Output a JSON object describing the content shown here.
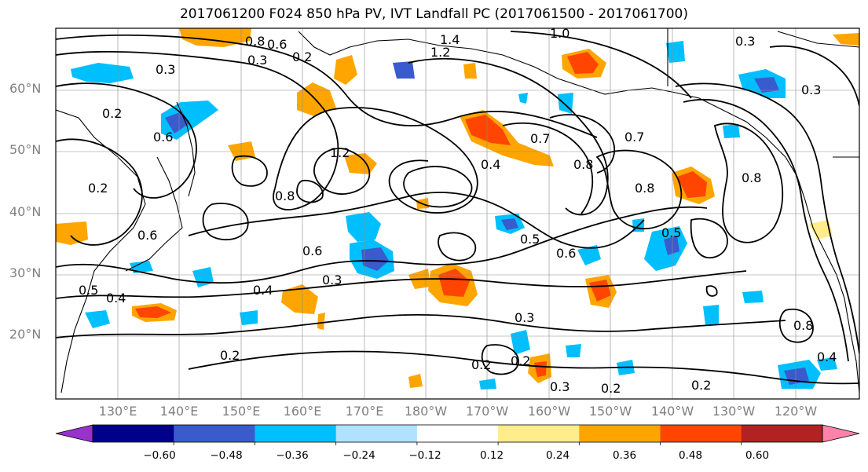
{
  "title": "2017061200 F024 850 hPa PV, IVT Landfall PC (2017061500 - 2017061700)",
  "lat_labels": [
    "60°N",
    "50°N",
    "40°N",
    "30°N",
    "20°N"
  ],
  "lon_labels": [
    "130°E",
    "140°E",
    "150°E",
    "160°E",
    "170°E",
    "180°W",
    "170°W",
    "160°W",
    "150°W",
    "140°W",
    "130°W",
    "120°W"
  ],
  "colorbar": {
    "ticks": [
      "−0.60",
      "−0.48",
      "−0.36",
      "−0.24",
      "−0.12",
      "0.12",
      "0.24",
      "0.36",
      "0.48",
      "0.60"
    ],
    "colors": [
      "#9932cc",
      "#00008b",
      "#3a5bcd",
      "#00bfff",
      "#b0e2ff",
      "#ffffff",
      "#ffec8b",
      "#ffa500",
      "#ff4500",
      "#b22222",
      "#ff82ab"
    ]
  },
  "contour_labels": [
    "0.8",
    "0.6",
    "0.3",
    "0.2",
    "1.4",
    "1.2",
    "1.0",
    "0.3",
    "0.3",
    "0.2",
    "0.6",
    "0.6",
    "0.2",
    "0.5",
    "0.4",
    "0.2",
    "1.2",
    "0.8",
    "0.4",
    "0.7",
    "0.8",
    "0.8",
    "0.8",
    "0.7",
    "0.5",
    "0.6",
    "0.6",
    "0.5",
    "0.4",
    "0.3",
    "0.3",
    "0.2",
    "0.2",
    "0.3",
    "0.2",
    "0.2",
    "0.4",
    "0.3",
    "0.8"
  ]
}
